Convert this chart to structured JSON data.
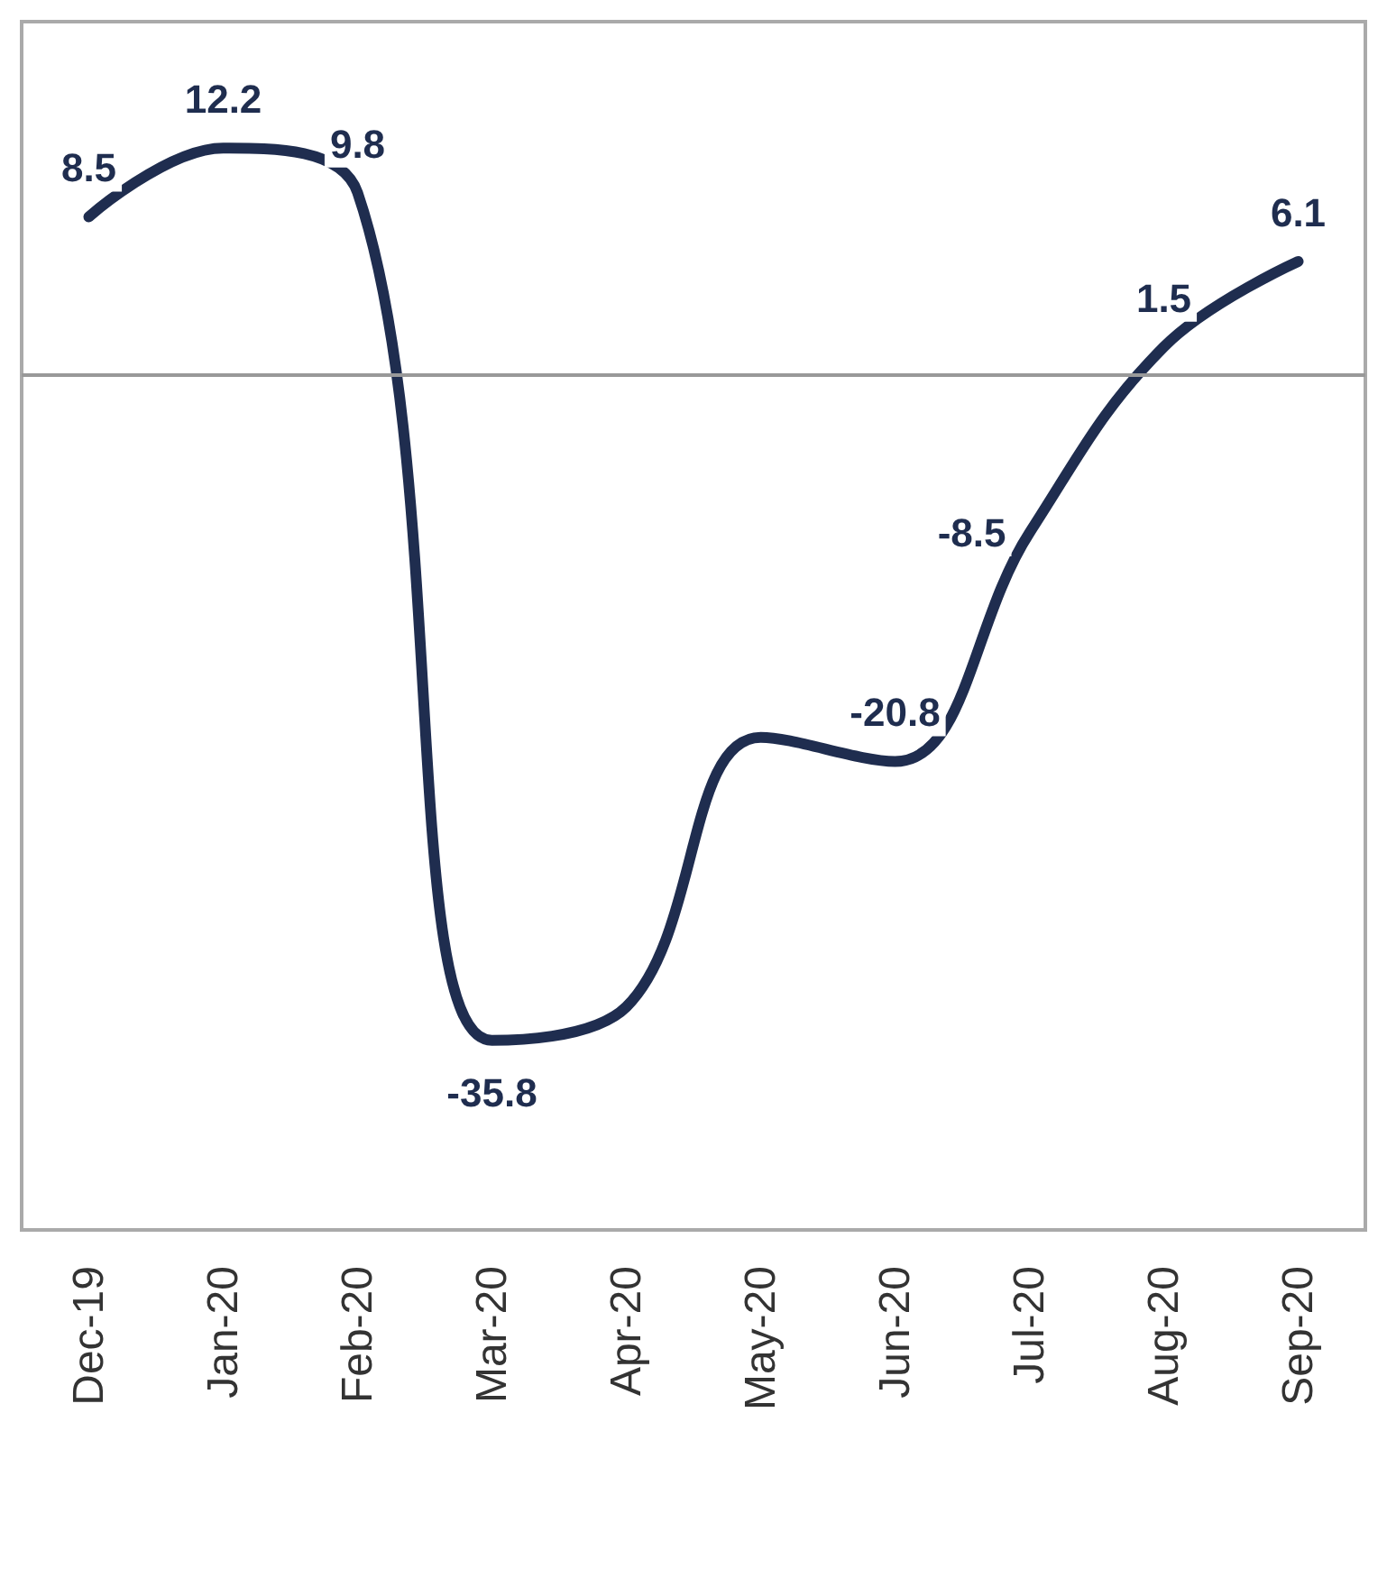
{
  "chart_data": {
    "type": "line",
    "categories": [
      "Dec-19",
      "Jan-20",
      "Feb-20",
      "Mar-20",
      "Apr-20",
      "May-20",
      "Jun-20",
      "Jul-20",
      "Aug-20",
      "Sep-20"
    ],
    "series": [
      {
        "color": "#1f2d4f",
        "values": [
          8.5,
          12.2,
          9.8,
          -35.8,
          -34,
          -19.5,
          -20.8,
          -8.5,
          1.5,
          6.1
        ],
        "value_labels": [
          "8.5",
          "12.2",
          "9.8",
          "-35.8",
          null,
          null,
          "-20.8",
          "-8.5",
          "1.5",
          "6.1"
        ]
      }
    ],
    "ylim": [
      -46,
      19
    ],
    "tick_labels": "x",
    "grid": false,
    "marker": "none",
    "line_style": "solid",
    "ref_lines": [
      {
        "axis": "y",
        "value": 0,
        "color": "#999999"
      }
    ]
  }
}
